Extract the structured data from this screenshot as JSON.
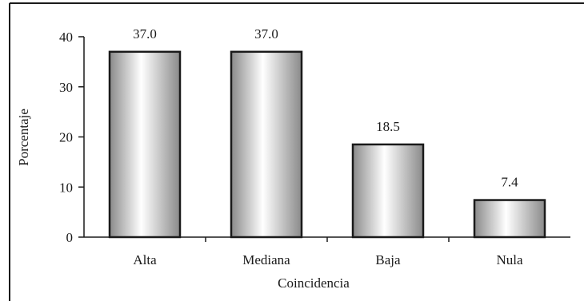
{
  "chart_data": {
    "type": "bar",
    "categories": [
      "Alta",
      "Mediana",
      "Baja",
      "Nula"
    ],
    "values": [
      37.0,
      37.0,
      18.5,
      7.4
    ],
    "value_labels": [
      "37.0",
      "37.0",
      "18.5",
      "7.4"
    ],
    "xlabel": "Coincidencia",
    "ylabel": "Porcentaje",
    "ylim": [
      0,
      40
    ],
    "yticks": [
      0,
      10,
      20,
      30,
      40
    ],
    "ytick_labels": [
      "0",
      "10",
      "20",
      "30",
      "40"
    ],
    "grid": false,
    "legend": "none",
    "colors": {
      "bar_dark": "#8a8a8a",
      "bar_light": "#ffffff",
      "outline": "#1a1a1a"
    }
  }
}
